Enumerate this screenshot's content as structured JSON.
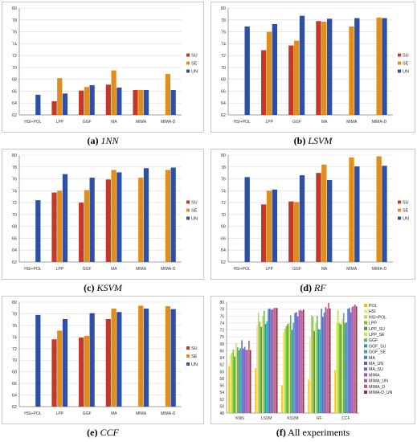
{
  "chart_data": [
    {
      "id": "a",
      "type": "bar",
      "caption_tag": "(a)",
      "caption_title": "1NN",
      "categories": [
        "HSI+POL",
        "LPP",
        "GGF",
        "MA",
        "MIMA",
        "MIMA-D"
      ],
      "ylim": [
        62,
        80
      ],
      "yticks": [
        62,
        64,
        66,
        68,
        70,
        72,
        74,
        76,
        78,
        80
      ],
      "legend_position": "right",
      "grid": true,
      "series": [
        {
          "name": "SU",
          "color": "#c0392b",
          "values": [
            null,
            64.3,
            66.1,
            67.1,
            66.2,
            null
          ]
        },
        {
          "name": "SE",
          "color": "#e08e1b",
          "values": [
            null,
            68.2,
            66.7,
            69.5,
            66.2,
            68.9
          ]
        },
        {
          "name": "UN",
          "color": "#2e4fa8",
          "values": [
            65.4,
            65.6,
            67.0,
            66.6,
            66.2,
            66.2
          ]
        }
      ]
    },
    {
      "id": "b",
      "type": "bar",
      "caption_tag": "(b)",
      "caption_title": "LSVM",
      "categories": [
        "HSI+POL",
        "LPP",
        "GGF",
        "MA",
        "MIMA",
        "MIMA-D"
      ],
      "ylim": [
        62,
        80
      ],
      "yticks": [
        62,
        64,
        66,
        68,
        70,
        72,
        74,
        76,
        78,
        80
      ],
      "legend_position": "right",
      "grid": true,
      "series": [
        {
          "name": "SU",
          "color": "#c0392b",
          "values": [
            null,
            72.9,
            73.7,
            77.8,
            null,
            null
          ]
        },
        {
          "name": "SE",
          "color": "#e08e1b",
          "values": [
            null,
            76.0,
            74.5,
            77.7,
            76.9,
            78.4
          ]
        },
        {
          "name": "UN",
          "color": "#2e4fa8",
          "values": [
            76.9,
            77.3,
            78.7,
            78.2,
            78.3,
            78.3
          ]
        }
      ]
    },
    {
      "id": "c",
      "type": "bar",
      "caption_tag": "(c)",
      "caption_title": "KSVM",
      "categories": [
        "HSI+POL",
        "LPP",
        "GGF",
        "MA",
        "MIMA",
        "MIMA-D"
      ],
      "ylim": [
        62,
        80
      ],
      "yticks": [
        62,
        64,
        66,
        68,
        70,
        72,
        74,
        76,
        78,
        80
      ],
      "legend_position": "right",
      "grid": true,
      "series": [
        {
          "name": "SU",
          "color": "#c0392b",
          "values": [
            null,
            73.7,
            72.0,
            75.9,
            null,
            null
          ]
        },
        {
          "name": "SE",
          "color": "#e08e1b",
          "values": [
            null,
            74.0,
            74.1,
            77.5,
            76.2,
            77.5
          ]
        },
        {
          "name": "UN",
          "color": "#2e4fa8",
          "values": [
            72.4,
            76.8,
            76.2,
            77.1,
            77.8,
            77.9
          ]
        }
      ]
    },
    {
      "id": "d",
      "type": "bar",
      "caption_tag": "(d)",
      "caption_title": "RF",
      "categories": [
        "HSI+POL",
        "LPP",
        "GGF",
        "MA",
        "MIMA",
        "MIMA-D"
      ],
      "ylim": [
        62,
        80
      ],
      "yticks": [
        62,
        64,
        66,
        68,
        70,
        72,
        74,
        76,
        78,
        80
      ],
      "legend_position": "right",
      "grid": true,
      "series": [
        {
          "name": "SU",
          "color": "#c0392b",
          "values": [
            null,
            71.7,
            72.2,
            77.0,
            null,
            null
          ]
        },
        {
          "name": "SE",
          "color": "#e08e1b",
          "values": [
            null,
            74.0,
            72.1,
            78.4,
            79.6,
            79.8
          ]
        },
        {
          "name": "UN",
          "color": "#2e4fa8",
          "values": [
            76.3,
            74.2,
            76.6,
            75.8,
            78.1,
            78.2
          ]
        }
      ]
    },
    {
      "id": "e",
      "type": "bar",
      "caption_tag": "(e)",
      "caption_title": "CCF",
      "categories": [
        "HSI+POL",
        "LPP",
        "GGF",
        "MA",
        "MIMA",
        "MIMA-D"
      ],
      "ylim": [
        62,
        80
      ],
      "yticks": [
        62,
        64,
        66,
        68,
        70,
        72,
        74,
        76,
        78,
        80
      ],
      "legend_position": "right",
      "grid": true,
      "series": [
        {
          "name": "SU",
          "color": "#c0392b",
          "values": [
            null,
            73.6,
            73.9,
            77.1,
            null,
            null
          ]
        },
        {
          "name": "SE",
          "color": "#e08e1b",
          "values": [
            null,
            75.1,
            74.2,
            78.9,
            79.4,
            79.3
          ]
        },
        {
          "name": "UN",
          "color": "#2e4fa8",
          "values": [
            77.8,
            77.1,
            78.1,
            78.3,
            78.9,
            78.8
          ]
        }
      ]
    },
    {
      "id": "f",
      "type": "bar",
      "caption_tag": "(f)",
      "caption_title": "All experiments",
      "caption_italic": false,
      "categories": [
        "KNN",
        "LSVM",
        "KSVM",
        "RF",
        "CCF"
      ],
      "ylim": [
        48,
        80
      ],
      "yticks": [
        48,
        50,
        52,
        54,
        56,
        58,
        60,
        62,
        64,
        66,
        68,
        70,
        72,
        74,
        76,
        78,
        80
      ],
      "legend_position": "right",
      "grid": true,
      "series": [
        {
          "name": "POL",
          "color": "#f2c400",
          "values": [
            61.6,
            61.0,
            56.0,
            57.6,
            60.4
          ]
        },
        {
          "name": "HSI",
          "color": "#f5e66a",
          "values": [
            65.0,
            73.4,
            71.3,
            70.0,
            74.0
          ]
        },
        {
          "name": "HSI+POL",
          "color": "#b7d957",
          "values": [
            65.4,
            76.9,
            72.4,
            76.3,
            77.8
          ]
        },
        {
          "name": "LPP",
          "color": "#7cbf3f",
          "values": [
            66.3,
            74.3,
            73.1,
            75.9,
            74.0
          ]
        },
        {
          "name": "LPP_SU",
          "color": "#4f9a2f",
          "values": [
            64.3,
            72.9,
            73.7,
            71.7,
            73.6
          ]
        },
        {
          "name": "LPP_SE",
          "color": "#d8e03f",
          "values": [
            68.2,
            76.0,
            74.0,
            74.0,
            75.1
          ]
        },
        {
          "name": "GGF",
          "color": "#59b27a",
          "values": [
            67.0,
            77.5,
            76.2,
            76.0,
            76.9
          ]
        },
        {
          "name": "GGF_SU",
          "color": "#2f9a8c",
          "values": [
            66.1,
            73.7,
            72.0,
            72.2,
            73.9
          ]
        },
        {
          "name": "GGF_SE",
          "color": "#3aa7b8",
          "values": [
            66.7,
            74.5,
            74.1,
            72.1,
            74.2
          ]
        },
        {
          "name": "MA",
          "color": "#4a79c9",
          "values": [
            69.0,
            78.0,
            76.9,
            78.1,
            78.1
          ]
        },
        {
          "name": "MA_UN",
          "color": "#5b5fc0",
          "values": [
            66.6,
            78.2,
            77.1,
            75.8,
            78.3
          ]
        },
        {
          "name": "MA_SU",
          "color": "#7c64b8",
          "values": [
            67.1,
            77.8,
            75.9,
            77.0,
            77.1
          ]
        },
        {
          "name": "MIMA",
          "color": "#9b5bb0",
          "values": [
            66.2,
            77.9,
            77.6,
            78.6,
            78.6
          ]
        },
        {
          "name": "MIMA_UN",
          "color": "#b55a9e",
          "values": [
            66.2,
            78.3,
            77.8,
            78.1,
            78.9
          ]
        },
        {
          "name": "MIMA_D",
          "color": "#c2577d",
          "values": [
            68.9,
            78.4,
            77.5,
            79.8,
            79.3
          ]
        },
        {
          "name": "MIMA-D_UN",
          "color": "#8e2f3f",
          "values": [
            66.2,
            78.3,
            77.9,
            78.2,
            78.8
          ]
        }
      ]
    }
  ]
}
